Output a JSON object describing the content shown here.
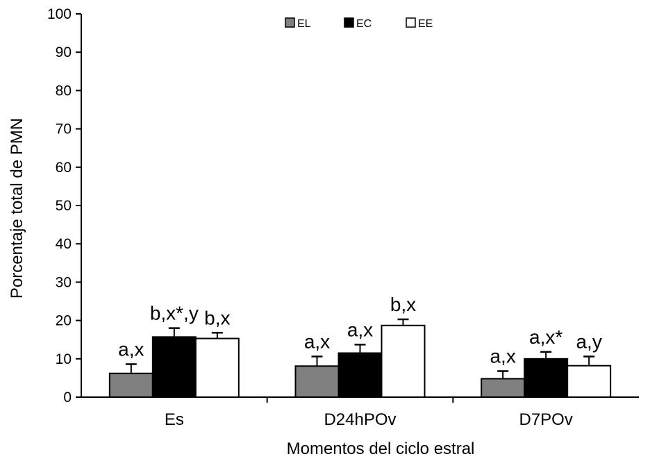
{
  "chart_data": {
    "type": "bar",
    "title": "",
    "xlabel": "Momentos del ciclo estral",
    "ylabel": "Porcentaje total de PMN",
    "ylim": [
      0,
      100
    ],
    "yticks": [
      0,
      10,
      20,
      30,
      40,
      50,
      60,
      70,
      80,
      90,
      100
    ],
    "grid": false,
    "legend": "top-center",
    "categories": [
      "Es",
      "D24hPOv",
      "D7POv"
    ],
    "series": [
      {
        "name": "EL",
        "color": "#808080",
        "values": [
          6.2,
          8.1,
          4.8
        ],
        "errors": [
          2.4,
          2.5,
          2.0
        ],
        "annotations": [
          "a,x",
          "a,x",
          "a,x"
        ]
      },
      {
        "name": "EC",
        "color": "#000000",
        "values": [
          15.7,
          11.5,
          10.0
        ],
        "errors": [
          2.3,
          2.2,
          1.8
        ],
        "annotations": [
          "b,x*,y",
          "a,x",
          "a,x*"
        ]
      },
      {
        "name": "EE",
        "color": "#ffffff",
        "values": [
          15.3,
          18.7,
          8.2
        ],
        "errors": [
          1.5,
          1.6,
          2.4
        ],
        "annotations": [
          "b,x",
          "b,x",
          "a,y"
        ]
      }
    ]
  }
}
